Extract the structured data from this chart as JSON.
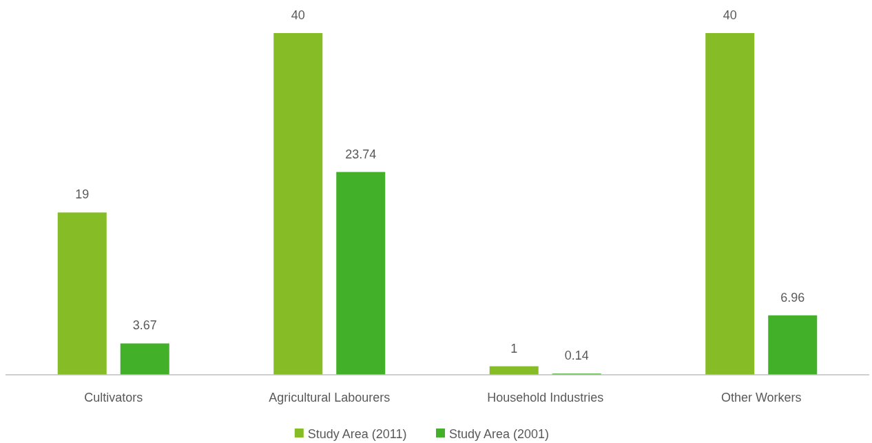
{
  "chart_data": {
    "type": "bar",
    "categories": [
      "Cultivators",
      "Agricultural Labourers",
      "Household Industries",
      "Other Workers"
    ],
    "series": [
      {
        "name": "Study Area (2011)",
        "color": "#86bc25",
        "values": [
          19,
          40,
          1,
          40
        ]
      },
      {
        "name": "Study Area (2001)",
        "color": "#43b02a",
        "values": [
          3.67,
          23.74,
          0.14,
          6.96
        ]
      }
    ],
    "data_labels": true,
    "legend": "bottom"
  }
}
